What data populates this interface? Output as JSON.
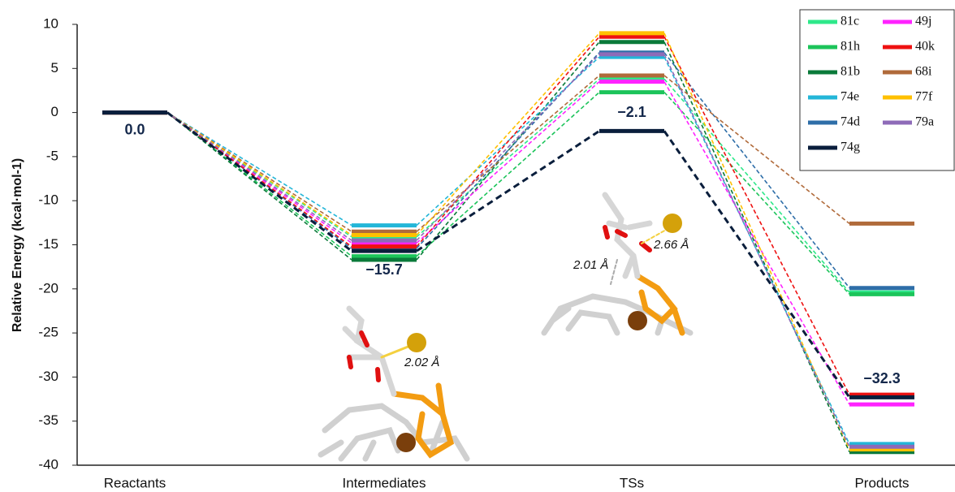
{
  "chart_data": {
    "type": "energy-profile",
    "y_label": "Relative Energy  (kcal·mol-1)",
    "categories": [
      "Reactants",
      "Intermediates",
      "TSs",
      "Products"
    ],
    "ylim": [
      -40,
      10
    ],
    "yticks": [
      -40,
      -35,
      -30,
      -25,
      -20,
      -15,
      -10,
      -5,
      0,
      5,
      10
    ],
    "series": [
      {
        "name": "81c",
        "color": "#2ee88a",
        "values": [
          0,
          -14.1,
          3.8,
          -20.4
        ]
      },
      {
        "name": "81h",
        "color": "#1cc45a",
        "values": [
          0,
          -16.3,
          2.3,
          -20.6
        ]
      },
      {
        "name": "81b",
        "color": "#0a7a3a",
        "values": [
          0,
          -16.7,
          8.0,
          -38.5
        ]
      },
      {
        "name": "74e",
        "color": "#23b6d8",
        "values": [
          0,
          -12.8,
          6.3,
          -37.6
        ]
      },
      {
        "name": "74d",
        "color": "#2e6ea8",
        "values": [
          0,
          -15.4,
          6.8,
          -19.9
        ]
      },
      {
        "name": "74g",
        "color": "#0a1e3c",
        "values": [
          0,
          -15.7,
          -2.1,
          -32.3
        ],
        "value_labels": [
          "0.0",
          "−15.7",
          "−2.1",
          "−32.3"
        ]
      },
      {
        "name": "49j",
        "color": "#ff22ff",
        "values": [
          0,
          -14.8,
          3.5,
          -33.1
        ]
      },
      {
        "name": "40k",
        "color": "#ee1111",
        "values": [
          0,
          -15.2,
          8.6,
          -32.0
        ]
      },
      {
        "name": "68i",
        "color": "#b06a3a",
        "values": [
          0,
          -13.5,
          4.2,
          -12.6
        ]
      },
      {
        "name": "77f",
        "color": "#ffc000",
        "values": [
          0,
          -13.9,
          9.0,
          -38.2
        ]
      },
      {
        "name": "79a",
        "color": "#8e6bb8",
        "values": [
          0,
          -14.5,
          6.6,
          -37.9
        ]
      }
    ],
    "annotations": [
      "2.02 Å",
      "2.66 Å",
      "2.01 Å"
    ]
  }
}
